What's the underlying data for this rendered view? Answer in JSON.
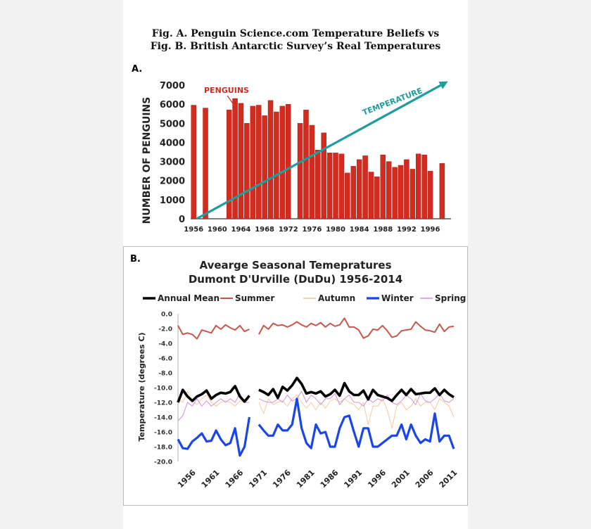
{
  "titles": {
    "line1": "Fig. A.    Penguin Science.com Temperature Beliefs vs",
    "line2": "Fig. B.    British Antarctic Survey’s Real Temperatures"
  },
  "colors": {
    "bar": "#d42b1e",
    "arrow": "#1f9c9c",
    "annual": "#000000",
    "summer": "#c9564a",
    "autumn": "#f6c99b",
    "winter": "#1a45e8",
    "spring": "#d68fdc"
  },
  "chart_data": [
    {
      "panel_label": "A.",
      "type": "bar",
      "ylabel": "NUMBER OF PENGUINS",
      "ylim": [
        0,
        7000
      ],
      "yticks": [
        "0",
        "1000",
        "2000",
        "3000",
        "4000",
        "5000",
        "6000",
        "7000"
      ],
      "xlim": [
        1955.5,
        1999.5
      ],
      "xticks": [
        "1956",
        "1960",
        "1964",
        "1968",
        "1972",
        "1976",
        "1980",
        "1984",
        "1988",
        "1992",
        "1996"
      ],
      "annotations": {
        "bars_label": "PENGUINS",
        "arrow_label": "TEMPERATURE"
      },
      "arrow": {
        "from": [
          1956.5,
          0
        ],
        "to": [
          1999,
          7200
        ]
      },
      "bars": [
        [
          1956,
          5950
        ],
        [
          1958,
          5800
        ],
        [
          1962,
          5700
        ],
        [
          1963,
          6300
        ],
        [
          1964,
          6050
        ],
        [
          1965,
          5000
        ],
        [
          1966,
          5900
        ],
        [
          1967,
          5950
        ],
        [
          1968,
          5400
        ],
        [
          1969,
          6200
        ],
        [
          1970,
          5600
        ],
        [
          1971,
          5900
        ],
        [
          1972,
          6000
        ],
        [
          1974,
          5000
        ],
        [
          1975,
          5700
        ],
        [
          1976,
          4900
        ],
        [
          1977,
          3600
        ],
        [
          1978,
          4500
        ],
        [
          1979,
          3450
        ],
        [
          1980,
          3450
        ],
        [
          1981,
          3400
        ],
        [
          1982,
          2400
        ],
        [
          1983,
          2750
        ],
        [
          1984,
          3100
        ],
        [
          1985,
          3300
        ],
        [
          1986,
          2450
        ],
        [
          1987,
          2200
        ],
        [
          1988,
          3350
        ],
        [
          1989,
          3000
        ],
        [
          1990,
          2700
        ],
        [
          1991,
          2800
        ],
        [
          1992,
          3100
        ],
        [
          1993,
          2600
        ],
        [
          1994,
          3400
        ],
        [
          1995,
          3350
        ],
        [
          1996,
          2500
        ],
        [
          1998,
          2900
        ]
      ]
    },
    {
      "panel_label": "B.",
      "type": "line",
      "title": "Avearge Seasonal Temepratures",
      "subtitle": "Dumont D'Urville (DuDu) 1956-2014",
      "ylabel": "Temperature (degrees C)",
      "ylim": [
        -20,
        0
      ],
      "yticks": [
        "0.0",
        "-2.0",
        "-4.0",
        "-6.0",
        "-8.0",
        "-10.0",
        "-12.0",
        "-14.0",
        "-16.0",
        "-18.0",
        "-20.0"
      ],
      "xlim": [
        1956,
        2014
      ],
      "xticks": [
        "1956",
        "1961",
        "1966",
        "1971",
        "1976",
        "1981",
        "1986",
        "1991",
        "1996",
        "2001",
        "2006",
        "2011"
      ],
      "series": [
        {
          "name": "Annual Mean",
          "x": [
            1956,
            1957,
            1958,
            1959,
            1960,
            1961,
            1962,
            1963,
            1964,
            1965,
            1966,
            1967,
            1968,
            1969,
            1970,
            1971,
            null,
            1973,
            1974,
            1975,
            1976,
            1977,
            1978,
            1979,
            1980,
            1981,
            1982,
            1983,
            1984,
            1985,
            1986,
            1987,
            1988,
            1989,
            1990,
            1991,
            1992,
            1993,
            1994,
            1995,
            1996,
            1997,
            1998,
            1999,
            2000,
            2001,
            2002,
            2003,
            2004,
            2005,
            2006,
            2007,
            2008,
            2009,
            2010,
            2011,
            2012,
            2013,
            2014
          ],
          "values": [
            -12.0,
            -10.3,
            -11.2,
            -11.8,
            -11.2,
            -10.9,
            -10.4,
            -11.5,
            -11.0,
            -10.7,
            -10.8,
            -10.6,
            -9.8,
            -11.2,
            -11.9,
            -11.1,
            null,
            -10.3,
            -10.6,
            -11.0,
            -10.2,
            -11.4,
            -9.9,
            -10.4,
            -9.7,
            -8.7,
            -9.5,
            -10.8,
            -10.6,
            -10.8,
            -10.5,
            -11.2,
            -10.9,
            -10.3,
            -11.1,
            -9.4,
            -10.5,
            -11.0,
            -11.0,
            -10.4,
            -11.6,
            -10.3,
            -11.0,
            -11.2,
            -11.4,
            -11.8,
            -11.0,
            -10.3,
            -11.0,
            -10.2,
            -10.9,
            -10.8,
            -10.7,
            -10.7,
            -10.1,
            -11.0,
            -10.3,
            -10.9,
            -11.3
          ]
        },
        {
          "name": "Summer",
          "x": [
            1956,
            1957,
            1958,
            1959,
            1960,
            1961,
            1962,
            1963,
            1964,
            1965,
            1966,
            1967,
            1968,
            1969,
            1970,
            1971,
            null,
            1973,
            1974,
            1975,
            1976,
            1977,
            1978,
            1979,
            1980,
            1981,
            1982,
            1983,
            1984,
            1985,
            1986,
            1987,
            1988,
            1989,
            1990,
            1991,
            1992,
            1993,
            1994,
            1995,
            1996,
            1997,
            1998,
            1999,
            2000,
            2001,
            2002,
            2003,
            2004,
            2005,
            2006,
            2007,
            2008,
            2009,
            2010,
            2011,
            2012,
            2013,
            2014
          ],
          "values": [
            -1.6,
            -2.8,
            -2.6,
            -2.8,
            -3.4,
            -2.2,
            -2.4,
            -2.6,
            -1.6,
            -2.1,
            -1.5,
            -1.9,
            -2.2,
            -1.6,
            -2.4,
            -2.1,
            null,
            -2.8,
            -1.6,
            -2.1,
            -1.3,
            -1.6,
            -1.5,
            -1.8,
            -1.5,
            -1.1,
            -1.5,
            -1.8,
            -1.3,
            -1.6,
            -1.2,
            -1.8,
            -1.3,
            -1.7,
            -1.5,
            -0.6,
            -1.8,
            -1.8,
            -2.2,
            -3.3,
            -3.0,
            -2.1,
            -2.2,
            -1.6,
            -2.3,
            -3.2,
            -3.0,
            -2.3,
            -2.2,
            -2.1,
            -1.1,
            -1.7,
            -2.2,
            -2.3,
            -2.5,
            -1.4,
            -2.4,
            -1.8,
            -1.7
          ]
        },
        {
          "name": "Autumn",
          "x": [
            1956,
            1957,
            1958,
            1959,
            1960,
            1961,
            1962,
            1963,
            1964,
            1965,
            1966,
            1967,
            1968,
            1969,
            1970,
            1971,
            null,
            1973,
            1974,
            1975,
            1976,
            1977,
            1978,
            1979,
            1980,
            1981,
            1982,
            1983,
            1984,
            1985,
            1986,
            1987,
            1988,
            1989,
            1990,
            1991,
            1992,
            1993,
            1994,
            1995,
            1996,
            1997,
            1998,
            1999,
            2000,
            2001,
            2002,
            2003,
            2004,
            2005,
            2006,
            2007,
            2008,
            2009,
            2010,
            2011,
            2012,
            2013,
            2014
          ],
          "values": [
            -11.5,
            -12.0,
            -10.5,
            -11.8,
            -12.3,
            -11.5,
            -11.0,
            -12.0,
            -12.5,
            -12.0,
            -11.8,
            -12.0,
            -12.5,
            -11.8,
            -12.0,
            -11.5,
            null,
            -12.0,
            -13.5,
            -11.5,
            -12.3,
            -12.0,
            -11.8,
            -12.5,
            -11.5,
            -11.0,
            -12.0,
            -12.8,
            -12.0,
            -13.0,
            -12.0,
            -12.8,
            -11.8,
            -11.5,
            -12.0,
            -11.5,
            -12.0,
            -12.3,
            -13.0,
            -12.0,
            -15.0,
            -12.5,
            -12.5,
            -11.5,
            -13.0,
            -15.5,
            -12.5,
            -12.0,
            -13.0,
            -12.5,
            -11.5,
            -12.5,
            -12.0,
            -12.0,
            -13.0,
            -11.5,
            -12.0,
            -12.5,
            -14.0
          ]
        },
        {
          "name": "Winter",
          "x": [
            1956,
            1957,
            1958,
            1959,
            1960,
            1961,
            1962,
            1963,
            1964,
            1965,
            1966,
            1967,
            1968,
            1969,
            1970,
            1971,
            null,
            1973,
            1974,
            1975,
            1976,
            1977,
            1978,
            1979,
            1980,
            1981,
            1982,
            1983,
            1984,
            1985,
            1986,
            1987,
            1988,
            1989,
            1990,
            1991,
            1992,
            1993,
            1994,
            1995,
            1996,
            1997,
            1998,
            1999,
            2000,
            2001,
            2002,
            2003,
            2004,
            2005,
            2006,
            2007,
            2008,
            2009,
            2010,
            2011,
            2012,
            2013,
            2014
          ],
          "values": [
            -17.0,
            -18.2,
            -18.3,
            -17.3,
            -16.8,
            -16.2,
            -17.3,
            -17.2,
            -15.8,
            -17.0,
            -17.8,
            -17.5,
            -15.5,
            -19.2,
            -18.0,
            -14.0,
            null,
            -15.0,
            -15.8,
            -16.5,
            -16.5,
            -15.0,
            -15.8,
            -15.8,
            -15.0,
            -11.5,
            -15.5,
            -17.5,
            -18.2,
            -15.0,
            -16.2,
            -16.0,
            -18.0,
            -18.0,
            -15.5,
            -14.0,
            -13.8,
            -16.0,
            -18.0,
            -15.5,
            -15.5,
            -18.0,
            -18.0,
            -17.5,
            -17.0,
            -16.5,
            -16.5,
            -15.0,
            -17.0,
            -15.0,
            -16.5,
            -17.5,
            -17.0,
            -17.3,
            -13.5,
            -17.3,
            -16.5,
            -16.5,
            -18.3
          ]
        },
        {
          "name": "Spring",
          "x": [
            1956,
            1957,
            1958,
            1959,
            1960,
            1961,
            1962,
            1963,
            1964,
            1965,
            1966,
            1967,
            1968,
            1969,
            1970,
            1971,
            null,
            1973,
            1974,
            1975,
            1976,
            1977,
            1978,
            1979,
            1980,
            1981,
            1982,
            1983,
            1984,
            1985,
            1986,
            1987,
            1988,
            1989,
            1990,
            1991,
            1992,
            1993,
            1994,
            1995,
            1996,
            1997,
            1998,
            1999,
            2000,
            2001,
            2002,
            2003,
            2004,
            2005,
            2006,
            2007,
            2008,
            2009,
            2010,
            2011,
            2012,
            2013,
            2014
          ],
          "values": [
            -14.5,
            -13.8,
            -12.0,
            -12.5,
            -11.5,
            -12.5,
            -11.8,
            -12.5,
            -12.0,
            -11.5,
            -12.0,
            -11.5,
            -12.0,
            -10.8,
            -12.0,
            -12.0,
            null,
            -11.5,
            -11.8,
            -12.0,
            -12.0,
            -11.5,
            -12.0,
            -11.0,
            -11.8,
            -11.5,
            -10.5,
            -12.0,
            -11.0,
            -11.5,
            -12.3,
            -11.5,
            -11.5,
            -10.8,
            -12.3,
            -11.5,
            -11.0,
            -12.0,
            -12.0,
            -12.5,
            -11.5,
            -12.0,
            -11.5,
            -11.8,
            -11.0,
            -12.0,
            -12.3,
            -11.8,
            -11.0,
            -11.5,
            -12.3,
            -10.8,
            -11.8,
            -12.0,
            -11.5,
            -10.8,
            -11.8,
            -12.0,
            -11.5
          ]
        }
      ]
    }
  ]
}
